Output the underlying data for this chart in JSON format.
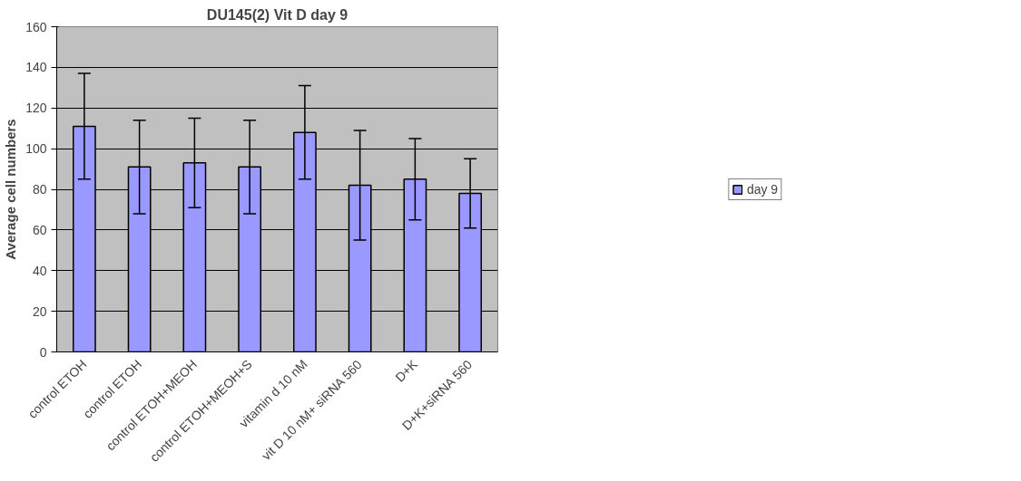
{
  "chart_data": {
    "type": "bar",
    "title": "DU145(2) Vit D day 9",
    "ylabel": "Average cell numbers",
    "categories": [
      "control ETOH",
      "control ETOH",
      "control ETOH+MEOH",
      "control ETOH+MEOH+S",
      "vitamin d 10 nM",
      "vit D 10 nM+ siRNA 560",
      "D+K",
      "D+K+siRNA 560"
    ],
    "series": [
      {
        "name": "day 9",
        "color": "#9999ff",
        "values": [
          111,
          91,
          93,
          91,
          108,
          82,
          85,
          78
        ],
        "errors": [
          26,
          23,
          22,
          23,
          23,
          27,
          20,
          17
        ]
      }
    ],
    "ylim": [
      0,
      160
    ],
    "yticks": [
      0,
      20,
      40,
      60,
      80,
      100,
      120,
      140,
      160
    ],
    "grid": "y",
    "legend": "right"
  }
}
